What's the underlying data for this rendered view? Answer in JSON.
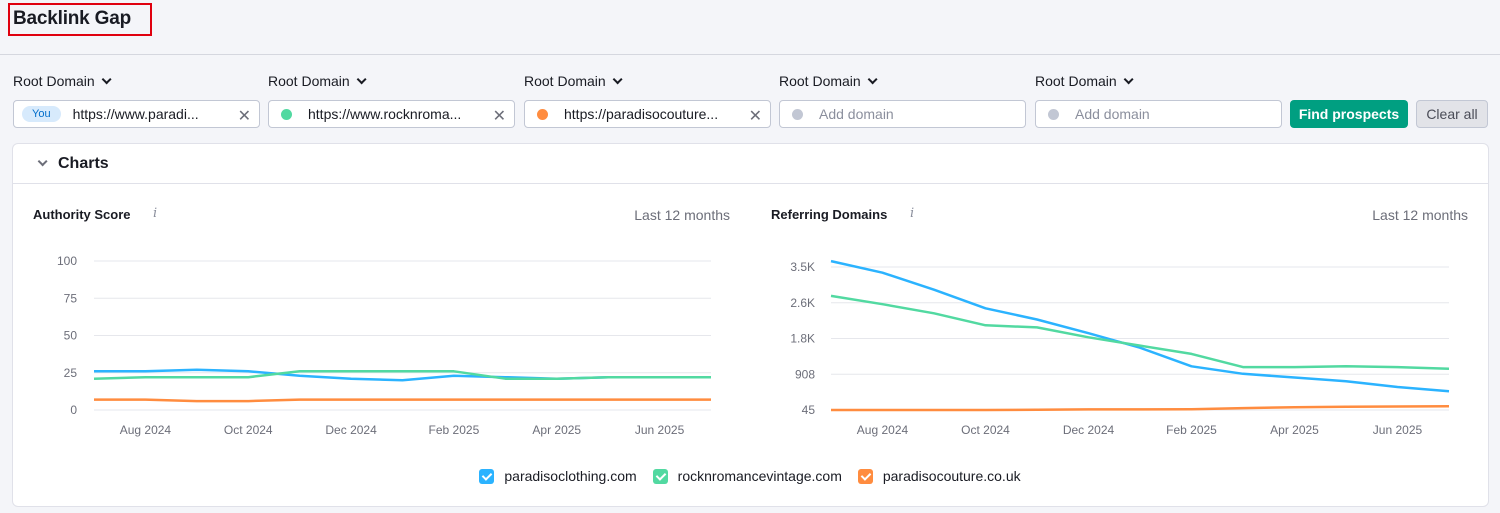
{
  "header": {
    "title": "Backlink Gap"
  },
  "domains": [
    {
      "type_label": "Root Domain",
      "badge": "You",
      "value": "https://www.paradi...",
      "placeholder": "",
      "dot_color": ""
    },
    {
      "type_label": "Root Domain",
      "badge": "",
      "value": "https://www.rocknroma...",
      "placeholder": "",
      "dot_color": "#52d9a1"
    },
    {
      "type_label": "Root Domain",
      "badge": "",
      "value": "https://paradisocouture...",
      "placeholder": "",
      "dot_color": "#ff8c3f"
    },
    {
      "type_label": "Root Domain",
      "badge": "",
      "value": "",
      "placeholder": "Add domain",
      "dot_color": "#c2c7d4"
    },
    {
      "type_label": "Root Domain",
      "badge": "",
      "value": "",
      "placeholder": "Add domain",
      "dot_color": "#c2c7d4"
    }
  ],
  "actions": {
    "find_label": "Find prospects",
    "clear_label": "Clear all"
  },
  "panel": {
    "title": "Charts"
  },
  "colors": {
    "series1": "#2bb3ff",
    "series2": "#52d9a1",
    "series3": "#ff8c3f",
    "accent": "#009f81"
  },
  "legend": [
    {
      "label": "paradisoclothing.com",
      "color": "#2bb3ff"
    },
    {
      "label": "rocknromancevintage.com",
      "color": "#52d9a1"
    },
    {
      "label": "paradisocouture.co.uk",
      "color": "#ff8c3f"
    }
  ],
  "chart_data": [
    {
      "type": "line",
      "title": "Authority Score",
      "period": "Last 12 months",
      "ylim": [
        0,
        100
      ],
      "yticks": [
        "0",
        "25",
        "50",
        "75",
        "100"
      ],
      "ytick_values": [
        0,
        25,
        50,
        75,
        100
      ],
      "x": [
        "Jul 2024",
        "Aug 2024",
        "Sep 2024",
        "Oct 2024",
        "Nov 2024",
        "Dec 2024",
        "Jan 2025",
        "Feb 2025",
        "Mar 2025",
        "Apr 2025",
        "May 2025",
        "Jun 2025",
        "Jul 2025"
      ],
      "xtick_labels": [
        "Aug 2024",
        "Oct 2024",
        "Dec 2024",
        "Feb 2025",
        "Apr 2025",
        "Jun 2025"
      ],
      "xtick_index": [
        1,
        3,
        5,
        7,
        9,
        11
      ],
      "series": [
        {
          "name": "paradisoclothing.com",
          "color": "#2bb3ff",
          "values": [
            26,
            26,
            27,
            26,
            23,
            21,
            20,
            23,
            22,
            21,
            22,
            22,
            22
          ]
        },
        {
          "name": "rocknromancevintage.com",
          "color": "#52d9a1",
          "values": [
            21,
            22,
            22,
            22,
            26,
            26,
            26,
            26,
            21,
            21,
            22,
            22,
            22
          ]
        },
        {
          "name": "paradisocouture.co.uk",
          "color": "#ff8c3f",
          "values": [
            7,
            7,
            6,
            6,
            7,
            7,
            7,
            7,
            7,
            7,
            7,
            7,
            7
          ]
        }
      ],
      "grid": true
    },
    {
      "type": "line",
      "title": "Referring Domains",
      "period": "Last 12 months",
      "ylim": [
        45,
        3500
      ],
      "yticks": [
        "45",
        "908",
        "1.8K",
        "2.6K",
        "3.5K"
      ],
      "ytick_values": [
        45,
        908,
        1771,
        2634,
        3497
      ],
      "x": [
        "Jul 2024",
        "Aug 2024",
        "Sep 2024",
        "Oct 2024",
        "Nov 2024",
        "Dec 2024",
        "Jan 2025",
        "Feb 2025",
        "Mar 2025",
        "Apr 2025",
        "May 2025",
        "Jun 2025",
        "Jul 2025"
      ],
      "xtick_labels": [
        "Aug 2024",
        "Oct 2024",
        "Dec 2024",
        "Feb 2025",
        "Apr 2025",
        "Jun 2025"
      ],
      "xtick_index": [
        1,
        3,
        5,
        7,
        9,
        11
      ],
      "series": [
        {
          "name": "paradisoclothing.com",
          "color": "#2bb3ff",
          "values": [
            3640,
            3360,
            2950,
            2500,
            2230,
            1900,
            1550,
            1100,
            920,
            830,
            740,
            600,
            500
          ]
        },
        {
          "name": "rocknromancevintage.com",
          "color": "#52d9a1",
          "values": [
            2800,
            2600,
            2380,
            2090,
            2040,
            1800,
            1600,
            1400,
            1080,
            1080,
            1100,
            1080,
            1040
          ]
        },
        {
          "name": "paradisocouture.co.uk",
          "color": "#ff8c3f",
          "values": [
            45,
            45,
            45,
            45,
            52,
            60,
            60,
            65,
            90,
            110,
            125,
            130,
            135
          ]
        }
      ],
      "grid": true
    }
  ]
}
